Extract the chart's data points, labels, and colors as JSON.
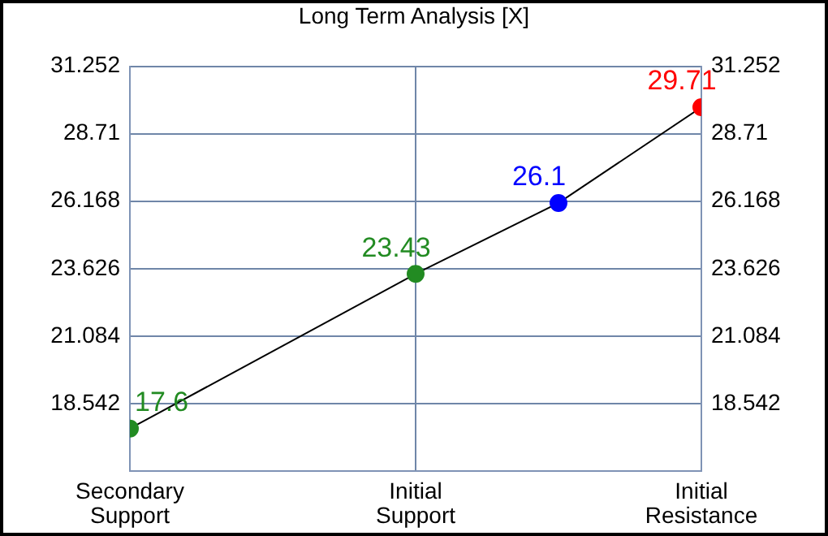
{
  "chart_data": {
    "type": "line",
    "title": "Long Term Analysis [X]",
    "categories": [
      "Secondary Support",
      null,
      "Initial Support",
      null,
      "Initial Resistance"
    ],
    "series": [
      {
        "color": "#000000",
        "colors": [
          "#228b22",
          null,
          "#228b22",
          "#0000ff",
          "#ff0000"
        ],
        "values": [
          17.6,
          null,
          23.43,
          26.1,
          29.71
        ]
      }
    ],
    "ylim": [
      16,
      31.252
    ],
    "yticks": [
      18.542,
      21.084,
      23.626,
      26.168,
      28.71,
      31.252
    ],
    "y2lim": [
      16,
      31.252
    ],
    "y2ticks": [
      18.542,
      21.084,
      23.626,
      26.168,
      28.71,
      31.252
    ],
    "grid": true,
    "legend": false,
    "marker": "circle",
    "line_style": "solid",
    "data_labels": true
  }
}
